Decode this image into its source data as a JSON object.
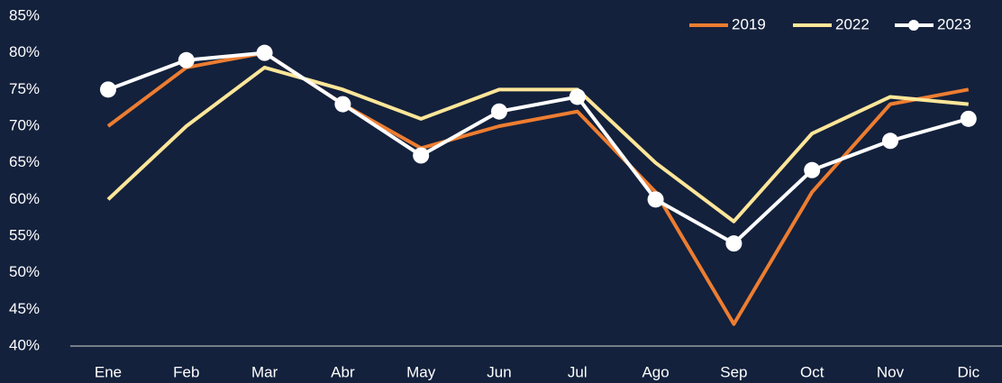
{
  "chart_data": {
    "type": "line",
    "categories": [
      "Ene",
      "Feb",
      "Mar",
      "Abr",
      "May",
      "Jun",
      "Jul",
      "Ago",
      "Sep",
      "Oct",
      "Nov",
      "Dic"
    ],
    "series": [
      {
        "name": "2019",
        "color": "#ed7d31",
        "values": [
          70,
          78,
          80,
          73,
          67,
          70,
          72,
          61,
          43,
          61,
          73,
          75
        ]
      },
      {
        "name": "2022",
        "color": "#ffe699",
        "values": [
          60,
          70,
          78,
          75,
          71,
          75,
          75,
          65,
          57,
          69,
          74,
          73
        ]
      },
      {
        "name": "2023",
        "color": "#ffffff",
        "markers": true,
        "values": [
          75,
          79,
          80,
          73,
          66,
          72,
          74,
          60,
          54,
          64,
          68,
          71
        ]
      }
    ],
    "ylim": [
      40,
      85
    ],
    "yticks": [
      {
        "value": 40,
        "label": "40%"
      },
      {
        "value": 45,
        "label": "45%"
      },
      {
        "value": 50,
        "label": "50%"
      },
      {
        "value": 55,
        "label": "55%"
      },
      {
        "value": 60,
        "label": "60%"
      },
      {
        "value": 65,
        "label": "65%"
      },
      {
        "value": 70,
        "label": "70%"
      },
      {
        "value": 75,
        "label": "75%"
      },
      {
        "value": 80,
        "label": "80%"
      },
      {
        "value": 85,
        "label": "85%"
      }
    ],
    "legend": "top-right"
  }
}
